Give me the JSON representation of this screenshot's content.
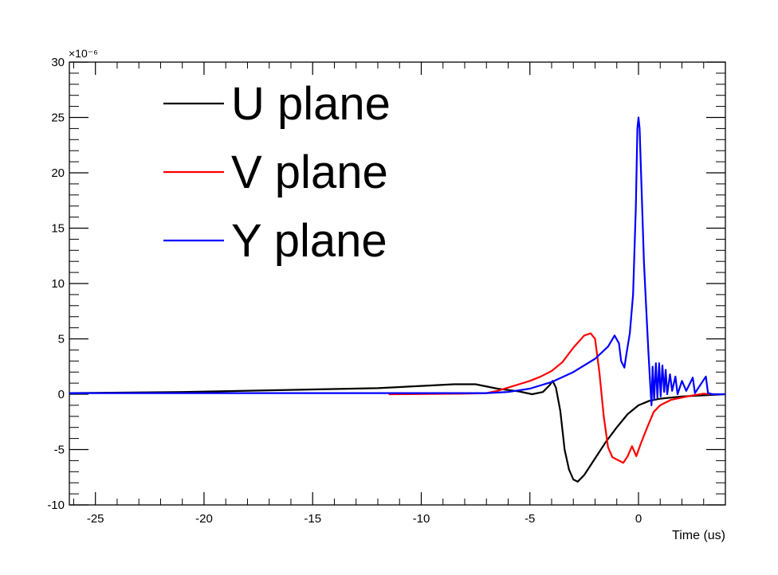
{
  "chart_data": {
    "type": "line",
    "title": "",
    "xlabel": "Time (us)",
    "ylabel": "",
    "y_exponent_label": "×10⁻⁶",
    "xlim": [
      -26.2,
      4.0
    ],
    "ylim": [
      -10,
      30
    ],
    "x_ticks": [
      -25,
      -20,
      -15,
      -10,
      -5,
      0
    ],
    "y_ticks": [
      -10,
      -5,
      0,
      5,
      10,
      15,
      20,
      25,
      30
    ],
    "grid": false,
    "legend_position": "top-left",
    "series": [
      {
        "name": "U plane",
        "color": "#000000",
        "points": [
          [
            -26.2,
            0.1
          ],
          [
            -21,
            0.2
          ],
          [
            -17,
            0.35
          ],
          [
            -12,
            0.55
          ],
          [
            -10,
            0.75
          ],
          [
            -8.5,
            0.9
          ],
          [
            -7.5,
            0.9
          ],
          [
            -6.5,
            0.5
          ],
          [
            -5.5,
            0.25
          ],
          [
            -4.9,
            0.0
          ],
          [
            -4.4,
            0.2
          ],
          [
            -4.1,
            0.8
          ],
          [
            -3.95,
            1.2
          ],
          [
            -3.8,
            0.6
          ],
          [
            -3.6,
            -1.5
          ],
          [
            -3.4,
            -5.0
          ],
          [
            -3.2,
            -6.8
          ],
          [
            -3.0,
            -7.7
          ],
          [
            -2.8,
            -7.9
          ],
          [
            -2.5,
            -7.3
          ],
          [
            -2.0,
            -5.8
          ],
          [
            -1.5,
            -4.3
          ],
          [
            -1.0,
            -3.0
          ],
          [
            -0.5,
            -1.8
          ],
          [
            0.0,
            -1.0
          ],
          [
            0.5,
            -0.6
          ],
          [
            1.0,
            -0.4
          ],
          [
            2.0,
            -0.2
          ],
          [
            3.0,
            -0.1
          ],
          [
            4.0,
            0.0
          ]
        ]
      },
      {
        "name": "V plane",
        "color": "#ff0000",
        "points": [
          [
            -11.5,
            0.0
          ],
          [
            -8.0,
            0.05
          ],
          [
            -7.0,
            0.1
          ],
          [
            -6.5,
            0.3
          ],
          [
            -6.0,
            0.6
          ],
          [
            -5.5,
            0.9
          ],
          [
            -5.0,
            1.2
          ],
          [
            -4.5,
            1.6
          ],
          [
            -4.0,
            2.1
          ],
          [
            -3.5,
            2.9
          ],
          [
            -3.0,
            4.2
          ],
          [
            -2.5,
            5.3
          ],
          [
            -2.2,
            5.5
          ],
          [
            -2.0,
            5.0
          ],
          [
            -1.8,
            2.0
          ],
          [
            -1.6,
            -2.0
          ],
          [
            -1.4,
            -4.8
          ],
          [
            -1.2,
            -5.7
          ],
          [
            -0.9,
            -6.0
          ],
          [
            -0.7,
            -6.2
          ],
          [
            -0.5,
            -5.6
          ],
          [
            -0.3,
            -4.7
          ],
          [
            -0.1,
            -5.6
          ],
          [
            0.1,
            -4.5
          ],
          [
            0.4,
            -3.0
          ],
          [
            0.7,
            -1.6
          ],
          [
            1.0,
            -1.0
          ],
          [
            1.5,
            -0.5
          ],
          [
            2.0,
            -0.3
          ],
          [
            2.5,
            -0.1
          ],
          [
            3.0,
            0.05
          ],
          [
            3.3,
            0.0
          ]
        ]
      },
      {
        "name": "Y plane",
        "color": "#0000ff",
        "points": [
          [
            -26.2,
            0.1
          ],
          [
            -10.0,
            0.1
          ],
          [
            -7.0,
            0.1
          ],
          [
            -6.0,
            0.2
          ],
          [
            -5.0,
            0.5
          ],
          [
            -4.0,
            1.1
          ],
          [
            -3.0,
            2.0
          ],
          [
            -2.0,
            3.2
          ],
          [
            -1.4,
            4.3
          ],
          [
            -1.1,
            5.3
          ],
          [
            -0.9,
            4.6
          ],
          [
            -0.8,
            3.0
          ],
          [
            -0.65,
            2.4
          ],
          [
            -0.55,
            3.7
          ],
          [
            -0.4,
            5.5
          ],
          [
            -0.25,
            9.0
          ],
          [
            -0.12,
            17.0
          ],
          [
            -0.05,
            24.0
          ],
          [
            0.0,
            25.0
          ],
          [
            0.05,
            24.0
          ],
          [
            0.15,
            18.0
          ],
          [
            0.25,
            12.0
          ],
          [
            0.35,
            8.0
          ],
          [
            0.45,
            4.0
          ],
          [
            0.55,
            0.5
          ],
          [
            0.6,
            -1.0
          ],
          [
            0.65,
            2.5
          ],
          [
            0.72,
            -0.5
          ],
          [
            0.8,
            2.8
          ],
          [
            0.87,
            -0.3
          ],
          [
            0.95,
            2.8
          ],
          [
            1.02,
            -0.2
          ],
          [
            1.1,
            2.6
          ],
          [
            1.18,
            0.2
          ],
          [
            1.25,
            2.2
          ],
          [
            1.32,
            0.0
          ],
          [
            1.45,
            1.8
          ],
          [
            1.55,
            0.3
          ],
          [
            1.7,
            1.6
          ],
          [
            1.8,
            0.0
          ],
          [
            2.0,
            1.2
          ],
          [
            2.2,
            0.3
          ],
          [
            2.5,
            1.5
          ],
          [
            2.6,
            0.1
          ],
          [
            3.1,
            1.6
          ],
          [
            3.2,
            0.1
          ],
          [
            3.4,
            0.0
          ],
          [
            4.0,
            0.0
          ]
        ]
      }
    ]
  }
}
